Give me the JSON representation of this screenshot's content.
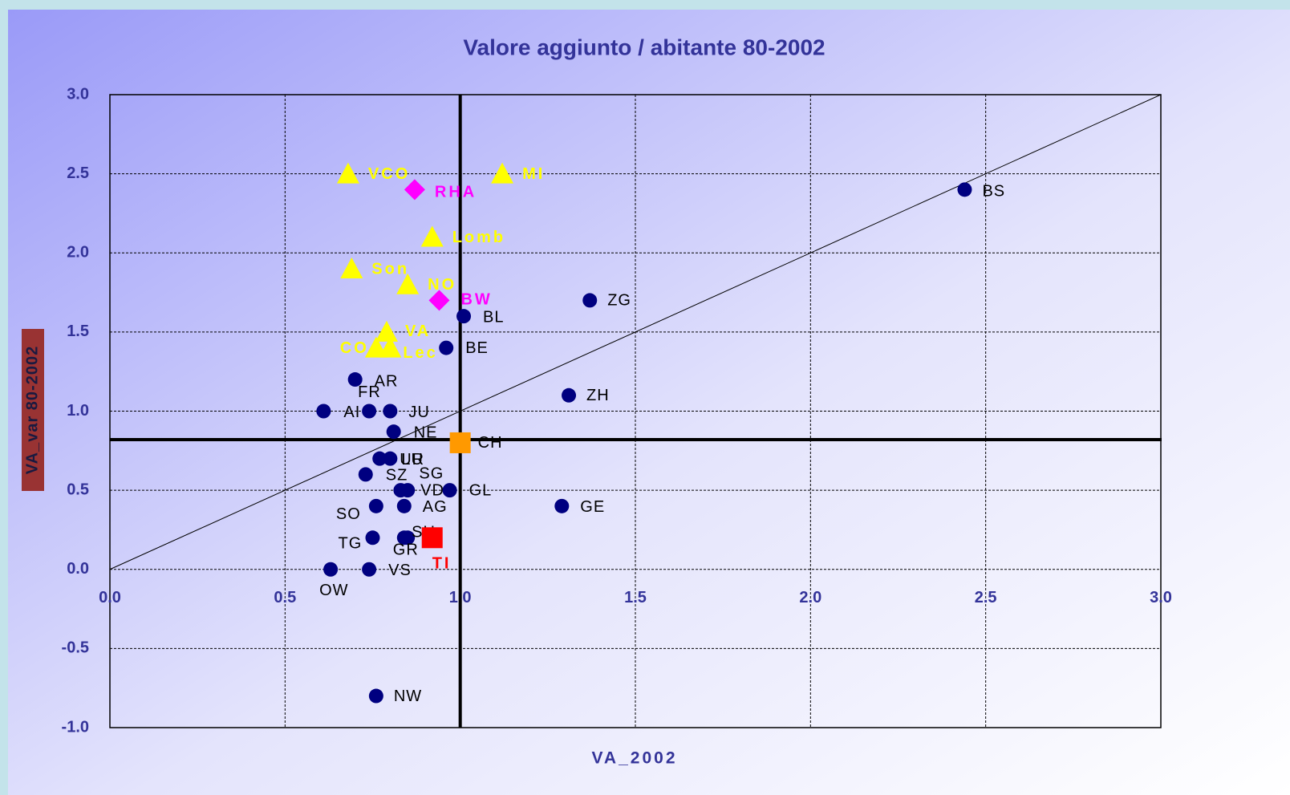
{
  "chart_data": {
    "type": "scatter",
    "title": "Valore aggiunto / abitante 80-2002",
    "x_label": "VA_2002",
    "y_label": "VA_var 80-2002",
    "xlim": [
      0,
      3
    ],
    "ylim": [
      -1,
      3
    ],
    "xticks": [
      {
        "value": 0,
        "label": "0.0"
      },
      0.5,
      {
        "value": 1,
        "label": "1.0"
      },
      1.5,
      {
        "value": 2,
        "label": "2.0"
      },
      2.5,
      {
        "value": 3,
        "label": "3.0"
      }
    ],
    "yticks": [
      {
        "value": -1,
        "label": "-1.0"
      },
      -0.5,
      {
        "value": 0,
        "label": "0.0"
      },
      0.5,
      {
        "value": 1,
        "label": "1.0"
      },
      1.5,
      {
        "value": 2,
        "label": "2.0"
      },
      2.5,
      {
        "value": 3,
        "label": "3.0"
      }
    ],
    "grid": true,
    "reference_lines": {
      "x": 1.0,
      "y": 0.82,
      "identity": true
    },
    "series": [
      {
        "color": "#000080",
        "marker": "circle",
        "label_color": "#000000",
        "labels": [
          "BS",
          "ZG",
          "BL",
          "BE",
          "ZH",
          "AR",
          "FR",
          "AI",
          "JU",
          "NE",
          "UR",
          "LU",
          "SZ",
          "SG",
          "VD",
          "GL",
          "SO",
          "AG",
          "GE",
          "TG",
          "SH",
          "GR",
          "OW",
          "VS",
          "NW"
        ],
        "x": [
          2.44,
          1.37,
          1.01,
          0.96,
          1.31,
          0.7,
          0.74,
          0.61,
          0.8,
          0.81,
          0.77,
          0.8,
          0.73,
          0.83,
          0.85,
          0.97,
          0.76,
          0.84,
          1.29,
          0.75,
          0.85,
          0.84,
          0.63,
          0.74,
          0.76
        ],
        "y": [
          2.4,
          1.7,
          1.6,
          1.4,
          1.1,
          1.2,
          1.0,
          1.0,
          1.0,
          0.87,
          0.7,
          0.7,
          0.6,
          0.5,
          0.5,
          0.5,
          0.4,
          0.4,
          0.4,
          0.2,
          0.2,
          0.2,
          0.0,
          0.0,
          -0.8
        ]
      },
      {
        "color": "#ff9900",
        "marker": "square",
        "label_color": "#000000",
        "labels": [
          "CH"
        ],
        "x": [
          1.0
        ],
        "y": [
          0.8
        ]
      },
      {
        "color": "#ff0000",
        "marker": "square",
        "label_color": "#ff0000",
        "bold": true,
        "labels": [
          "TI"
        ],
        "x": [
          0.92
        ],
        "y": [
          0.2
        ]
      },
      {
        "color": "#ffff00",
        "marker": "triangle",
        "label_color": "#ffff00",
        "bold": true,
        "labels": [
          "VCO",
          "MI",
          "Lomb",
          "Son",
          "NO",
          "VA",
          "CO",
          "Lec"
        ],
        "x": [
          0.68,
          1.12,
          0.92,
          0.69,
          0.85,
          0.79,
          0.76,
          0.8
        ],
        "y": [
          2.5,
          2.5,
          2.1,
          1.9,
          1.8,
          1.5,
          1.4,
          1.4
        ]
      },
      {
        "color": "#ff00ff",
        "marker": "diamond",
        "label_color": "#ff00ff",
        "bold": true,
        "labels": [
          "RHA",
          "BW"
        ],
        "x": [
          0.87,
          0.94
        ],
        "y": [
          2.4,
          1.7
        ]
      }
    ]
  }
}
